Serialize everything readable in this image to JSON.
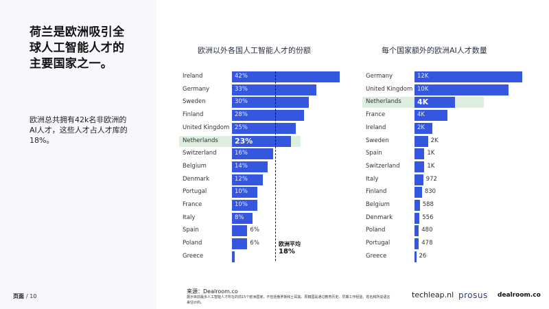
{
  "left_panel": {
    "headline": "荷兰是欧洲吸引全球人工智能人才的主要国家之一。",
    "summary": "欧洲总共拥有42k名非欧洲的AI人才，这些人才占人才库的18%。",
    "page_label": "页面",
    "page_number": "/ 10"
  },
  "chart_left_title": "欧洲以外各国人工智能人才的份额",
  "chart_right_title": "每个国家额外的欧洲AI人才数量",
  "average": {
    "label": "欧洲平均",
    "value": "18%"
  },
  "source": "来源：Dealroom.co",
  "footnote": "展示目前最多人工智能人才所在的前15个欧洲国家，不包括俄罗斯和土耳其。原籍国是通过教育历史、早期工作经验、姓名和所说语言来估计的。",
  "logos": {
    "techleap": "techleap.nl",
    "prosus": "prosus",
    "dealroom": "dealroom.co"
  },
  "colors": {
    "bar": "#3557e0",
    "highlight": "#dcefdf",
    "panel": "#f7f8fc"
  },
  "chart_data": [
    {
      "type": "bar",
      "orientation": "horizontal",
      "title": "欧洲以外各国人工智能人才的份额",
      "categories": [
        "Ireland",
        "Germany",
        "Sweden",
        "Finland",
        "United Kingdom",
        "Netherlands",
        "Switzerland",
        "Belgium",
        "Denmark",
        "Portugal",
        "France",
        "Italy",
        "Spain",
        "Poland",
        "Greece"
      ],
      "values": [
        42,
        33,
        30,
        28,
        25,
        23,
        16,
        14,
        12,
        10,
        10,
        8,
        6,
        6,
        1
      ],
      "labels": [
        "42%",
        "33%",
        "30%",
        "28%",
        "25%",
        "23%",
        "16%",
        "14%",
        "12%",
        "10%",
        "10%",
        "8%",
        "6%",
        "6%",
        ""
      ],
      "unit": "%",
      "highlight": "Netherlands",
      "reference_line": {
        "label": "欧洲平均",
        "value": 18
      },
      "xlim": [
        0,
        42
      ]
    },
    {
      "type": "bar",
      "orientation": "horizontal",
      "title": "每个国家额外的欧洲AI人才数量",
      "categories": [
        "Germany",
        "United Kingdom",
        "Netherlands",
        "France",
        "Ireland",
        "Sweden",
        "Spain",
        "Switzerland",
        "Italy",
        "Finland",
        "Belgium",
        "Denmark",
        "Poland",
        "Portugal",
        "Greece"
      ],
      "values": [
        12000,
        10500,
        4500,
        3700,
        2000,
        1500,
        1100,
        1100,
        972,
        830,
        588,
        556,
        480,
        478,
        26
      ],
      "labels": [
        "12K",
        "10K",
        "4K",
        "4K",
        "2K",
        "2K",
        "1K",
        "1K",
        "972",
        "830",
        "588",
        "556",
        "480",
        "478",
        "26"
      ],
      "highlight": "Netherlands",
      "xlim": [
        0,
        12000
      ]
    }
  ]
}
